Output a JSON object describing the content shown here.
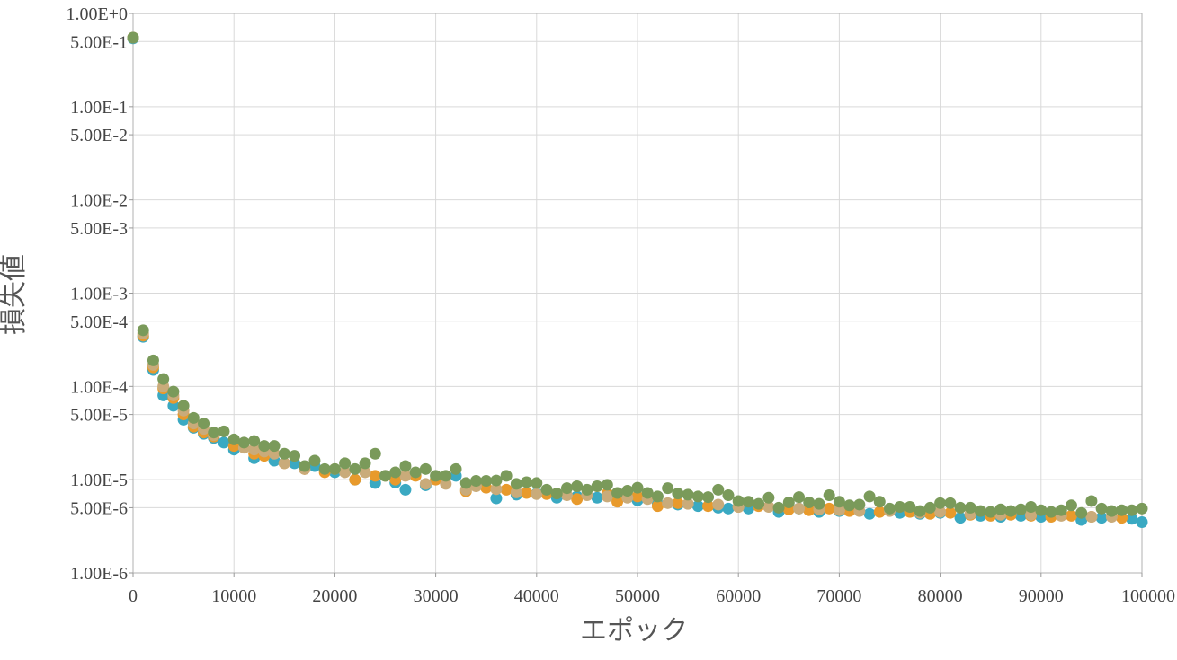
{
  "chart_data": {
    "type": "scatter",
    "title": "",
    "xlabel": "エポック",
    "ylabel": "損失値",
    "xlim": [
      0,
      100000
    ],
    "ylim": [
      1e-06,
      1
    ],
    "y_scale": "log",
    "grid": true,
    "x_ticks": [
      {
        "value": 0,
        "label": "0"
      },
      {
        "value": 10000,
        "label": "10000"
      },
      {
        "value": 20000,
        "label": "20000"
      },
      {
        "value": 30000,
        "label": "30000"
      },
      {
        "value": 40000,
        "label": "40000"
      },
      {
        "value": 50000,
        "label": "50000"
      },
      {
        "value": 60000,
        "label": "60000"
      },
      {
        "value": 70000,
        "label": "70000"
      },
      {
        "value": 80000,
        "label": "80000"
      },
      {
        "value": 90000,
        "label": "90000"
      },
      {
        "value": 100000,
        "label": "100000"
      }
    ],
    "y_ticks": [
      {
        "value": 1,
        "label": "1.00E+0"
      },
      {
        "value": 0.5,
        "label": "5.00E-1"
      },
      {
        "value": 0.1,
        "label": "1.00E-1"
      },
      {
        "value": 0.05,
        "label": "5.00E-2"
      },
      {
        "value": 0.01,
        "label": "1.00E-2"
      },
      {
        "value": 0.005,
        "label": "5.00E-3"
      },
      {
        "value": 0.001,
        "label": "1.00E-3"
      },
      {
        "value": 0.0005,
        "label": "5.00E-4"
      },
      {
        "value": 0.0001,
        "label": "1.00E-4"
      },
      {
        "value": 5e-05,
        "label": "5.00E-5"
      },
      {
        "value": 1e-05,
        "label": "1.00E-5"
      },
      {
        "value": 5e-06,
        "label": "5.00E-6"
      },
      {
        "value": 1e-06,
        "label": "1.00E-6"
      }
    ],
    "series": [
      {
        "color": "#3aa9c2",
        "points": [
          [
            0,
            0.54
          ],
          [
            1000,
            0.00034
          ],
          [
            2000,
            0.00015
          ],
          [
            3000,
            8e-05
          ],
          [
            4000,
            6.2e-05
          ],
          [
            5000,
            4.4e-05
          ],
          [
            6000,
            3.6e-05
          ],
          [
            7000,
            3.1e-05
          ],
          [
            8000,
            2.8e-05
          ],
          [
            9000,
            2.5e-05
          ],
          [
            10000,
            2.1e-05
          ],
          [
            12000,
            1.7e-05
          ],
          [
            14000,
            1.6e-05
          ],
          [
            16000,
            1.5e-05
          ],
          [
            18000,
            1.4e-05
          ],
          [
            20000,
            1.2e-05
          ],
          [
            22000,
            1e-05
          ],
          [
            24000,
            9.2e-06
          ],
          [
            26000,
            9.3e-06
          ],
          [
            27000,
            7.8e-06
          ],
          [
            29000,
            8.7e-06
          ],
          [
            32000,
            1.1e-05
          ],
          [
            36000,
            6.3e-06
          ],
          [
            38000,
            6.9e-06
          ],
          [
            40000,
            7.1e-06
          ],
          [
            42000,
            6.4e-06
          ],
          [
            44000,
            6.6e-06
          ],
          [
            46000,
            6.4e-06
          ],
          [
            48000,
            6.2e-06
          ],
          [
            50000,
            6e-06
          ],
          [
            52000,
            5.5e-06
          ],
          [
            54000,
            5.4e-06
          ],
          [
            56000,
            5.2e-06
          ],
          [
            58000,
            5e-06
          ],
          [
            59000,
            4.9e-06
          ],
          [
            61000,
            4.9e-06
          ],
          [
            64000,
            4.5e-06
          ],
          [
            66000,
            4.9e-06
          ],
          [
            68000,
            4.5e-06
          ],
          [
            70000,
            4.6e-06
          ],
          [
            73000,
            4.3e-06
          ],
          [
            76000,
            4.4e-06
          ],
          [
            78000,
            4.3e-06
          ],
          [
            80000,
            4.4e-06
          ],
          [
            82000,
            3.9e-06
          ],
          [
            84000,
            4.1e-06
          ],
          [
            86000,
            4e-06
          ],
          [
            88000,
            4.1e-06
          ],
          [
            90000,
            4e-06
          ],
          [
            94000,
            3.7e-06
          ],
          [
            96000,
            3.9e-06
          ],
          [
            99000,
            3.8e-06
          ],
          [
            100000,
            3.5e-06
          ]
        ]
      },
      {
        "color": "#e89a2c",
        "points": [
          [
            0,
            0.55
          ],
          [
            1000,
            0.00035
          ],
          [
            2000,
            0.00016
          ],
          [
            3000,
            9.5e-05
          ],
          [
            4000,
            7.5e-05
          ],
          [
            5000,
            5e-05
          ],
          [
            6000,
            3.7e-05
          ],
          [
            7000,
            3.2e-05
          ],
          [
            8000,
            2.9e-05
          ],
          [
            10000,
            2.3e-05
          ],
          [
            12000,
            1.9e-05
          ],
          [
            13000,
            1.8e-05
          ],
          [
            15000,
            1.5e-05
          ],
          [
            17000,
            1.3e-05
          ],
          [
            19000,
            1.2e-05
          ],
          [
            22000,
            1e-05
          ],
          [
            24000,
            1.1e-05
          ],
          [
            26000,
            1e-05
          ],
          [
            28000,
            1.1e-05
          ],
          [
            30000,
            1e-05
          ],
          [
            33000,
            7.5e-06
          ],
          [
            35000,
            8.2e-06
          ],
          [
            37000,
            7.8e-06
          ],
          [
            39000,
            7.2e-06
          ],
          [
            41000,
            7e-06
          ],
          [
            44000,
            6.2e-06
          ],
          [
            47000,
            7.1e-06
          ],
          [
            48000,
            5.8e-06
          ],
          [
            50000,
            6.6e-06
          ],
          [
            52000,
            5.2e-06
          ],
          [
            54000,
            5.6e-06
          ],
          [
            57000,
            5.2e-06
          ],
          [
            60000,
            5.1e-06
          ],
          [
            62000,
            5.2e-06
          ],
          [
            65000,
            4.8e-06
          ],
          [
            67000,
            4.7e-06
          ],
          [
            69000,
            4.9e-06
          ],
          [
            71000,
            4.6e-06
          ],
          [
            74000,
            4.5e-06
          ],
          [
            77000,
            4.5e-06
          ],
          [
            79000,
            4.3e-06
          ],
          [
            81000,
            4.4e-06
          ],
          [
            83000,
            4.2e-06
          ],
          [
            85000,
            4.1e-06
          ],
          [
            87000,
            4.2e-06
          ],
          [
            89000,
            4.1e-06
          ],
          [
            91000,
            4e-06
          ],
          [
            93000,
            4.1e-06
          ],
          [
            95000,
            4e-06
          ],
          [
            98000,
            3.9e-06
          ]
        ]
      },
      {
        "color": "#c9ab7a",
        "points": [
          [
            0,
            0.55
          ],
          [
            1000,
            0.00037
          ],
          [
            2000,
            0.00017
          ],
          [
            3000,
            0.0001
          ],
          [
            4000,
            8e-05
          ],
          [
            5000,
            5.5e-05
          ],
          [
            6000,
            4e-05
          ],
          [
            7000,
            3.5e-05
          ],
          [
            8000,
            3e-05
          ],
          [
            11000,
            2.2e-05
          ],
          [
            12000,
            2.1e-05
          ],
          [
            13000,
            2e-05
          ],
          [
            14000,
            1.9e-05
          ],
          [
            15000,
            1.5e-05
          ],
          [
            17000,
            1.3e-05
          ],
          [
            20000,
            1.3e-05
          ],
          [
            21000,
            1.2e-05
          ],
          [
            23000,
            1.2e-05
          ],
          [
            25000,
            1.1e-05
          ],
          [
            27000,
            1.1e-05
          ],
          [
            29000,
            9e-06
          ],
          [
            31000,
            9e-06
          ],
          [
            33000,
            7.8e-06
          ],
          [
            34000,
            8.5e-06
          ],
          [
            36000,
            7.9e-06
          ],
          [
            38000,
            7.3e-06
          ],
          [
            40000,
            7e-06
          ],
          [
            43000,
            6.8e-06
          ],
          [
            45000,
            6.8e-06
          ],
          [
            47000,
            6.6e-06
          ],
          [
            49000,
            6.4e-06
          ],
          [
            51000,
            6.2e-06
          ],
          [
            53000,
            5.6e-06
          ],
          [
            55000,
            5.5e-06
          ],
          [
            58000,
            5.4e-06
          ],
          [
            60000,
            5.1e-06
          ],
          [
            63000,
            5.1e-06
          ],
          [
            66000,
            4.9e-06
          ],
          [
            68000,
            4.8e-06
          ],
          [
            70000,
            4.7e-06
          ],
          [
            72000,
            4.6e-06
          ],
          [
            75000,
            4.6e-06
          ],
          [
            78000,
            4.4e-06
          ],
          [
            80000,
            4.5e-06
          ],
          [
            83000,
            4.3e-06
          ],
          [
            86000,
            4.2e-06
          ],
          [
            89000,
            4.2e-06
          ],
          [
            92000,
            4.1e-06
          ],
          [
            95000,
            4e-06
          ],
          [
            97000,
            4e-06
          ]
        ]
      },
      {
        "color": "#7a9a5a",
        "points": [
          [
            0,
            0.55
          ],
          [
            1000,
            0.0004
          ],
          [
            2000,
            0.00019
          ],
          [
            3000,
            0.00012
          ],
          [
            4000,
            8.8e-05
          ],
          [
            5000,
            6.2e-05
          ],
          [
            6000,
            4.6e-05
          ],
          [
            7000,
            4e-05
          ],
          [
            8000,
            3.2e-05
          ],
          [
            9000,
            3.3e-05
          ],
          [
            10000,
            2.7e-05
          ],
          [
            11000,
            2.5e-05
          ],
          [
            12000,
            2.6e-05
          ],
          [
            13000,
            2.3e-05
          ],
          [
            14000,
            2.3e-05
          ],
          [
            15000,
            1.9e-05
          ],
          [
            16000,
            1.8e-05
          ],
          [
            17000,
            1.4e-05
          ],
          [
            18000,
            1.6e-05
          ],
          [
            19000,
            1.3e-05
          ],
          [
            20000,
            1.3e-05
          ],
          [
            21000,
            1.5e-05
          ],
          [
            22000,
            1.3e-05
          ],
          [
            23000,
            1.5e-05
          ],
          [
            24000,
            1.9e-05
          ],
          [
            25000,
            1.1e-05
          ],
          [
            26000,
            1.2e-05
          ],
          [
            27000,
            1.4e-05
          ],
          [
            28000,
            1.2e-05
          ],
          [
            29000,
            1.3e-05
          ],
          [
            30000,
            1.1e-05
          ],
          [
            31000,
            1.1e-05
          ],
          [
            32000,
            1.3e-05
          ],
          [
            33000,
            9.2e-06
          ],
          [
            34000,
            9.7e-06
          ],
          [
            35000,
            9.7e-06
          ],
          [
            36000,
            9.8e-06
          ],
          [
            37000,
            1.1e-05
          ],
          [
            38000,
            9e-06
          ],
          [
            39000,
            9.4e-06
          ],
          [
            40000,
            9.2e-06
          ],
          [
            41000,
            7.8e-06
          ],
          [
            42000,
            7.1e-06
          ],
          [
            43000,
            8.1e-06
          ],
          [
            44000,
            8.5e-06
          ],
          [
            45000,
            7.8e-06
          ],
          [
            46000,
            8.5e-06
          ],
          [
            47000,
            8.8e-06
          ],
          [
            48000,
            7.2e-06
          ],
          [
            49000,
            7.6e-06
          ],
          [
            50000,
            8.2e-06
          ],
          [
            51000,
            7.2e-06
          ],
          [
            52000,
            6.6e-06
          ],
          [
            53000,
            8.1e-06
          ],
          [
            54000,
            7.1e-06
          ],
          [
            55000,
            6.9e-06
          ],
          [
            56000,
            6.6e-06
          ],
          [
            57000,
            6.5e-06
          ],
          [
            58000,
            7.8e-06
          ],
          [
            59000,
            6.8e-06
          ],
          [
            60000,
            5.9e-06
          ],
          [
            61000,
            5.8e-06
          ],
          [
            62000,
            5.5e-06
          ],
          [
            63000,
            6.4e-06
          ],
          [
            64000,
            5e-06
          ],
          [
            65000,
            5.7e-06
          ],
          [
            66000,
            6.5e-06
          ],
          [
            67000,
            5.7e-06
          ],
          [
            68000,
            5.5e-06
          ],
          [
            69000,
            6.8e-06
          ],
          [
            70000,
            5.8e-06
          ],
          [
            71000,
            5.3e-06
          ],
          [
            72000,
            5.4e-06
          ],
          [
            73000,
            6.6e-06
          ],
          [
            74000,
            5.8e-06
          ],
          [
            75000,
            4.9e-06
          ],
          [
            76000,
            5.1e-06
          ],
          [
            77000,
            5.1e-06
          ],
          [
            78000,
            4.6e-06
          ],
          [
            79000,
            5e-06
          ],
          [
            80000,
            5.6e-06
          ],
          [
            81000,
            5.6e-06
          ],
          [
            82000,
            5e-06
          ],
          [
            83000,
            5e-06
          ],
          [
            84000,
            4.6e-06
          ],
          [
            85000,
            4.5e-06
          ],
          [
            86000,
            4.8e-06
          ],
          [
            87000,
            4.6e-06
          ],
          [
            88000,
            4.8e-06
          ],
          [
            89000,
            5.1e-06
          ],
          [
            90000,
            4.7e-06
          ],
          [
            91000,
            4.5e-06
          ],
          [
            92000,
            4.7e-06
          ],
          [
            93000,
            5.3e-06
          ],
          [
            94000,
            4.4e-06
          ],
          [
            95000,
            5.9e-06
          ],
          [
            96000,
            4.9e-06
          ],
          [
            97000,
            4.6e-06
          ],
          [
            98000,
            4.7e-06
          ],
          [
            99000,
            4.7e-06
          ],
          [
            100000,
            4.9e-06
          ]
        ]
      }
    ]
  }
}
